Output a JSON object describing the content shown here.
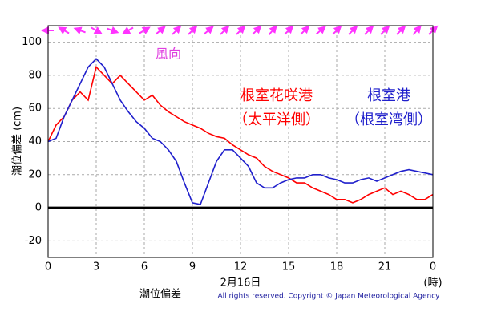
{
  "chart_data": {
    "type": "line",
    "y_label": "潮位偏差 (cm)",
    "x_label": "2月16日",
    "x_unit": "(時)",
    "bottom_label": "潮位偏差",
    "copyright": "All rights reserved. Copyright © Japan Meteorological Agency",
    "annotations": [
      {
        "text": "風向",
        "color": "#e040e0"
      },
      {
        "text": "根室花咲港",
        "color": "#ff0000"
      },
      {
        "text": "（太平洋側）",
        "color": "#ff0000"
      },
      {
        "text": "根室港",
        "color": "#2020cc"
      },
      {
        "text": "（根室湾側）",
        "color": "#2020cc"
      }
    ],
    "x": [
      0,
      0.5,
      1,
      1.5,
      2,
      2.5,
      3,
      3.5,
      4,
      4.5,
      5,
      5.5,
      6,
      6.5,
      7,
      7.5,
      8,
      8.5,
      9,
      9.5,
      10,
      10.5,
      11,
      11.5,
      12,
      12.5,
      13,
      13.5,
      14,
      14.5,
      15,
      15.5,
      16,
      16.5,
      17,
      17.5,
      18,
      18.5,
      19,
      19.5,
      20,
      20.5,
      21,
      21.5,
      22,
      22.5,
      23,
      23.5,
      24
    ],
    "series": [
      {
        "name": "根室花咲港",
        "color": "#ff0000",
        "values": [
          40,
          50,
          55,
          65,
          70,
          65,
          85,
          80,
          75,
          80,
          75,
          70,
          65,
          68,
          62,
          58,
          55,
          52,
          50,
          48,
          45,
          43,
          42,
          38,
          35,
          32,
          30,
          25,
          22,
          20,
          18,
          15,
          15,
          12,
          10,
          8,
          5,
          5,
          3,
          5,
          8,
          10,
          12,
          8,
          10,
          8,
          5,
          5,
          8
        ]
      },
      {
        "name": "根室港",
        "color": "#2020cc",
        "values": [
          40,
          42,
          55,
          65,
          75,
          85,
          90,
          85,
          75,
          65,
          58,
          52,
          48,
          42,
          40,
          35,
          28,
          15,
          3,
          2,
          15,
          28,
          35,
          35,
          30,
          25,
          15,
          12,
          12,
          15,
          17,
          18,
          18,
          20,
          20,
          18,
          17,
          15,
          15,
          17,
          18,
          16,
          18,
          20,
          22,
          23,
          22,
          21,
          20
        ]
      }
    ],
    "wind": {
      "color": "#ff33ff",
      "x": [
        0,
        1,
        2,
        3,
        4,
        5,
        6,
        7,
        8,
        9,
        10,
        11,
        12,
        13,
        14,
        15,
        16,
        17,
        18,
        19,
        20,
        21,
        22,
        23,
        24
      ],
      "direction": [
        270,
        300,
        290,
        120,
        110,
        240,
        60,
        50,
        45,
        45,
        50,
        45,
        45,
        45,
        40,
        45,
        45,
        50,
        45,
        45,
        45,
        45,
        45,
        40,
        45
      ]
    },
    "xlim": [
      0,
      24
    ],
    "xticks": [
      0,
      3,
      6,
      9,
      12,
      15,
      18,
      21,
      {
        "value": 24,
        "label": "0"
      }
    ],
    "ylim": [
      -30,
      110
    ],
    "yticks": [
      -20,
      0,
      20,
      40,
      60,
      80,
      100
    ],
    "grid": true
  }
}
